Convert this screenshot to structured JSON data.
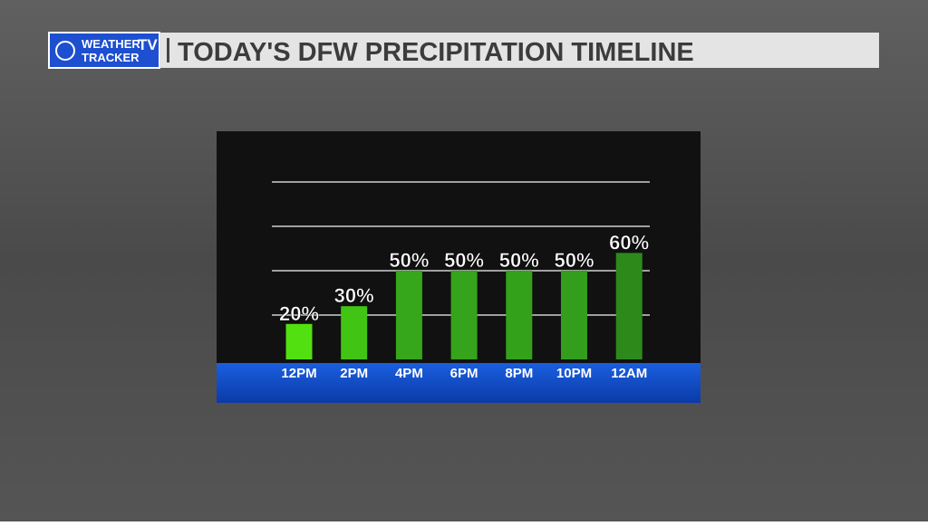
{
  "branding": {
    "logo_line1": "WEATHER",
    "logo_line2": "TRACKER",
    "logo_badge": "TV"
  },
  "chart_data": {
    "type": "bar",
    "title": "TODAY'S DFW PRECIPITATION TIMELINE",
    "categories": [
      "12PM",
      "2PM",
      "4PM",
      "6PM",
      "8PM",
      "10PM",
      "12AM"
    ],
    "values": [
      20,
      30,
      50,
      50,
      50,
      50,
      60
    ],
    "value_labels": [
      "20%",
      "30%",
      "50%",
      "50%",
      "50%",
      "50%",
      "60%"
    ],
    "colors": [
      "#52e010",
      "#42c414",
      "#36a61a",
      "#35a31b",
      "#34a11b",
      "#339d1c",
      "#2d8a1a"
    ],
    "ylim": [
      0,
      100
    ],
    "yticks": [
      25,
      50,
      75,
      100
    ],
    "grid": true
  }
}
